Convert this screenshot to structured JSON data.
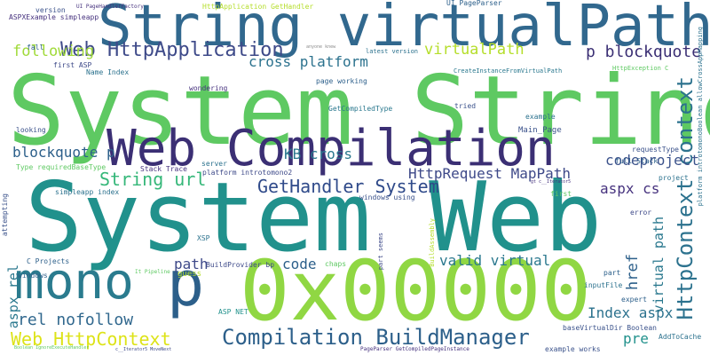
{
  "words": [
    {
      "text": "System String",
      "color": "#5ec962"
    },
    {
      "text": "System Web",
      "color": "#21918c"
    },
    {
      "text": "String virtualPath",
      "color": "#31688e"
    },
    {
      "text": "Web Compilation",
      "color": "#3b2f74"
    },
    {
      "text": "0x00000",
      "color": "#90d743"
    },
    {
      "text": "mono",
      "color": "#2a7b8e"
    },
    {
      "text": "p",
      "color": "#2c5f8a"
    },
    {
      "text": "Web HttpApplication",
      "color": "#3e4a89"
    },
    {
      "text": "HttpContext context",
      "color": "#2c728e"
    },
    {
      "text": "Compilation BuildManager",
      "color": "#2c5f8a"
    },
    {
      "text": "GetHandler System",
      "color": "#2f4a8a"
    },
    {
      "text": "Web HttpContext",
      "color": "#dde318"
    },
    {
      "text": "rel nofollow",
      "color": "#31688e"
    },
    {
      "text": "String url",
      "color": "#35b779"
    },
    {
      "text": "HttpRequest MapPath",
      "color": "#3e4989"
    },
    {
      "text": "codeproject",
      "color": "#3b528b"
    },
    {
      "text": "p blockquote",
      "color": "#3b2f74"
    },
    {
      "text": "blockquote p",
      "color": "#2c5f8a"
    },
    {
      "text": "cross platform",
      "color": "#2c728e"
    },
    {
      "text": "virtualPath",
      "color": "#b5de2b"
    },
    {
      "text": "following",
      "color": "#a0da39"
    },
    {
      "text": "KB cross",
      "color": "#2a788e"
    },
    {
      "text": "aspx cs",
      "color": "#46327e"
    },
    {
      "text": "valid virtual",
      "color": "#2a788e"
    },
    {
      "text": "Index aspx",
      "color": "#2c728e"
    },
    {
      "text": "href",
      "color": "#2c5f8a"
    },
    {
      "text": "virtual path",
      "color": "#2a788e"
    },
    {
      "text": "aspx rel",
      "color": "#2a788e"
    },
    {
      "text": "path",
      "color": "#3e4989"
    },
    {
      "text": "code",
      "color": "#2c5f8a"
    },
    {
      "text": "pre",
      "color": "#21918c"
    },
    {
      "text": "Main_Page",
      "color": "#3b528b"
    },
    {
      "text": "GetCompiledType",
      "color": "#2a788e"
    },
    {
      "text": "Stack Trace",
      "color": "#46327e"
    },
    {
      "text": "platform introtomono2",
      "color": "#3e4a89"
    },
    {
      "text": "simpleapp index",
      "color": "#2c728e"
    },
    {
      "text": "Type requiredBaseType",
      "color": "#5ec962"
    },
    {
      "text": "windows using",
      "color": "#3b528b"
    },
    {
      "text": "C Projects",
      "color": "#2c5f8a"
    },
    {
      "text": "BuildProvider bp",
      "color": "#3e4a89"
    },
    {
      "text": "XSP",
      "color": "#2c728e"
    },
    {
      "text": "ASP NET",
      "color": "#21918c"
    },
    {
      "text": "version",
      "color": "#3b528b"
    },
    {
      "text": "ASPXExample simpleapp",
      "color": "#46327e"
    },
    {
      "text": "UI PageHandlerFactory",
      "color": "#46327e"
    },
    {
      "text": "HttpApplication GetHandler",
      "color": "#b5de2b"
    },
    {
      "text": "UI PageParser",
      "color": "#2c5f8a"
    },
    {
      "text": "latest version",
      "color": "#2c728e"
    },
    {
      "text": "anyone knew",
      "color": "#8a8a8a"
    },
    {
      "text": "fall",
      "color": "#2c5f8a"
    },
    {
      "text": "first ASP",
      "color": "#3e4a89"
    },
    {
      "text": "Name Index",
      "color": "#2c728e"
    },
    {
      "text": "wondering",
      "color": "#46327e"
    },
    {
      "text": "page working",
      "color": "#2c5f8a"
    },
    {
      "text": "CreateInstanceFromVirtualPath",
      "color": "#2a788e"
    },
    {
      "text": "HttpException C",
      "color": "#5ec962"
    },
    {
      "text": "tried",
      "color": "#3b528b"
    },
    {
      "text": "example",
      "color": "#2c728e"
    },
    {
      "text": "looking",
      "color": "#3b528b"
    },
    {
      "text": "server",
      "color": "#2c728e"
    },
    {
      "text": "requestType",
      "color": "#3b528b"
    },
    {
      "text": "full Stack",
      "color": "#2c5f8a"
    },
    {
      "text": "project",
      "color": "#2c728e"
    },
    {
      "text": "error",
      "color": "#3e4a89"
    },
    {
      "text": "first",
      "color": "#5ec962"
    },
    {
      "text": "windows",
      "color": "#2c5f8a"
    },
    {
      "text": "part seems",
      "color": "#3e4a89"
    },
    {
      "text": "chaps",
      "color": "#5ec962"
    },
    {
      "text": "guess",
      "color": "#b5de2b"
    },
    {
      "text": "part",
      "color": "#2c5f8a"
    },
    {
      "text": "inputFile",
      "color": "#2c728e"
    },
    {
      "text": "expert",
      "color": "#2c5f8a"
    },
    {
      "text": "baseVirtualDir Boolean",
      "color": "#3b528b"
    },
    {
      "text": "AddToCache",
      "color": "#2c728e"
    },
    {
      "text": "example works",
      "color": "#3b528b"
    },
    {
      "text": "PageParser GetCompiledPageInstance",
      "color": "#46327e"
    },
    {
      "text": "gt c__Iterator5",
      "color": "#46327e"
    },
    {
      "text": "It Pipeline",
      "color": "#5ec962"
    },
    {
      "text": "attempting",
      "color": "#3b528b"
    },
    {
      "text": "BuildAssembly",
      "color": "#b5de2b"
    },
    {
      "text": "platform introtomonoBoolean allowCrossAppMapping",
      "color": "#2c728e"
    },
    {
      "text": "c__Iterator5 MoveNext",
      "color": "#3e4a89"
    },
    {
      "text": "Boolean IgnoreExecuteHandler",
      "color": "#5ec962"
    }
  ]
}
